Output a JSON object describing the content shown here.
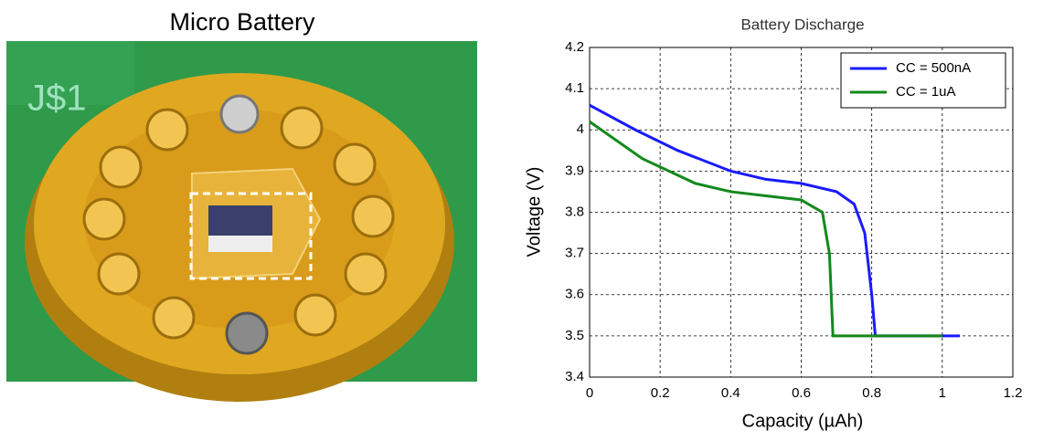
{
  "photo": {
    "title": "Micro Battery"
  },
  "chart_data": {
    "type": "line",
    "title": "Battery Discharge",
    "xlabel": "Capacity (µAh)",
    "ylabel": "Voltage (V)",
    "xlim": [
      0,
      1.2
    ],
    "ylim": [
      3.4,
      4.2
    ],
    "xticks": [
      0,
      0.2,
      0.4,
      0.6,
      0.8,
      1,
      1.2
    ],
    "yticks": [
      3.4,
      3.5,
      3.6,
      3.7,
      3.8,
      3.9,
      4,
      4.1,
      4.2
    ],
    "grid": true,
    "legend": "upper right",
    "series": [
      {
        "name": "CC = 500nA",
        "color": "#1a1aff",
        "x": [
          0,
          0.13,
          0.25,
          0.4,
          0.5,
          0.6,
          0.7,
          0.75,
          0.78,
          0.8,
          0.81,
          1.05
        ],
        "values": [
          4.06,
          4.0,
          3.95,
          3.9,
          3.88,
          3.87,
          3.85,
          3.82,
          3.75,
          3.6,
          3.5,
          3.5
        ]
      },
      {
        "name": "CC = 1uA",
        "color": "#13891b",
        "x": [
          0,
          0.15,
          0.3,
          0.4,
          0.5,
          0.6,
          0.66,
          0.68,
          0.69,
          1.0
        ],
        "values": [
          4.02,
          3.93,
          3.87,
          3.85,
          3.84,
          3.83,
          3.8,
          3.7,
          3.5,
          3.5
        ]
      }
    ]
  }
}
